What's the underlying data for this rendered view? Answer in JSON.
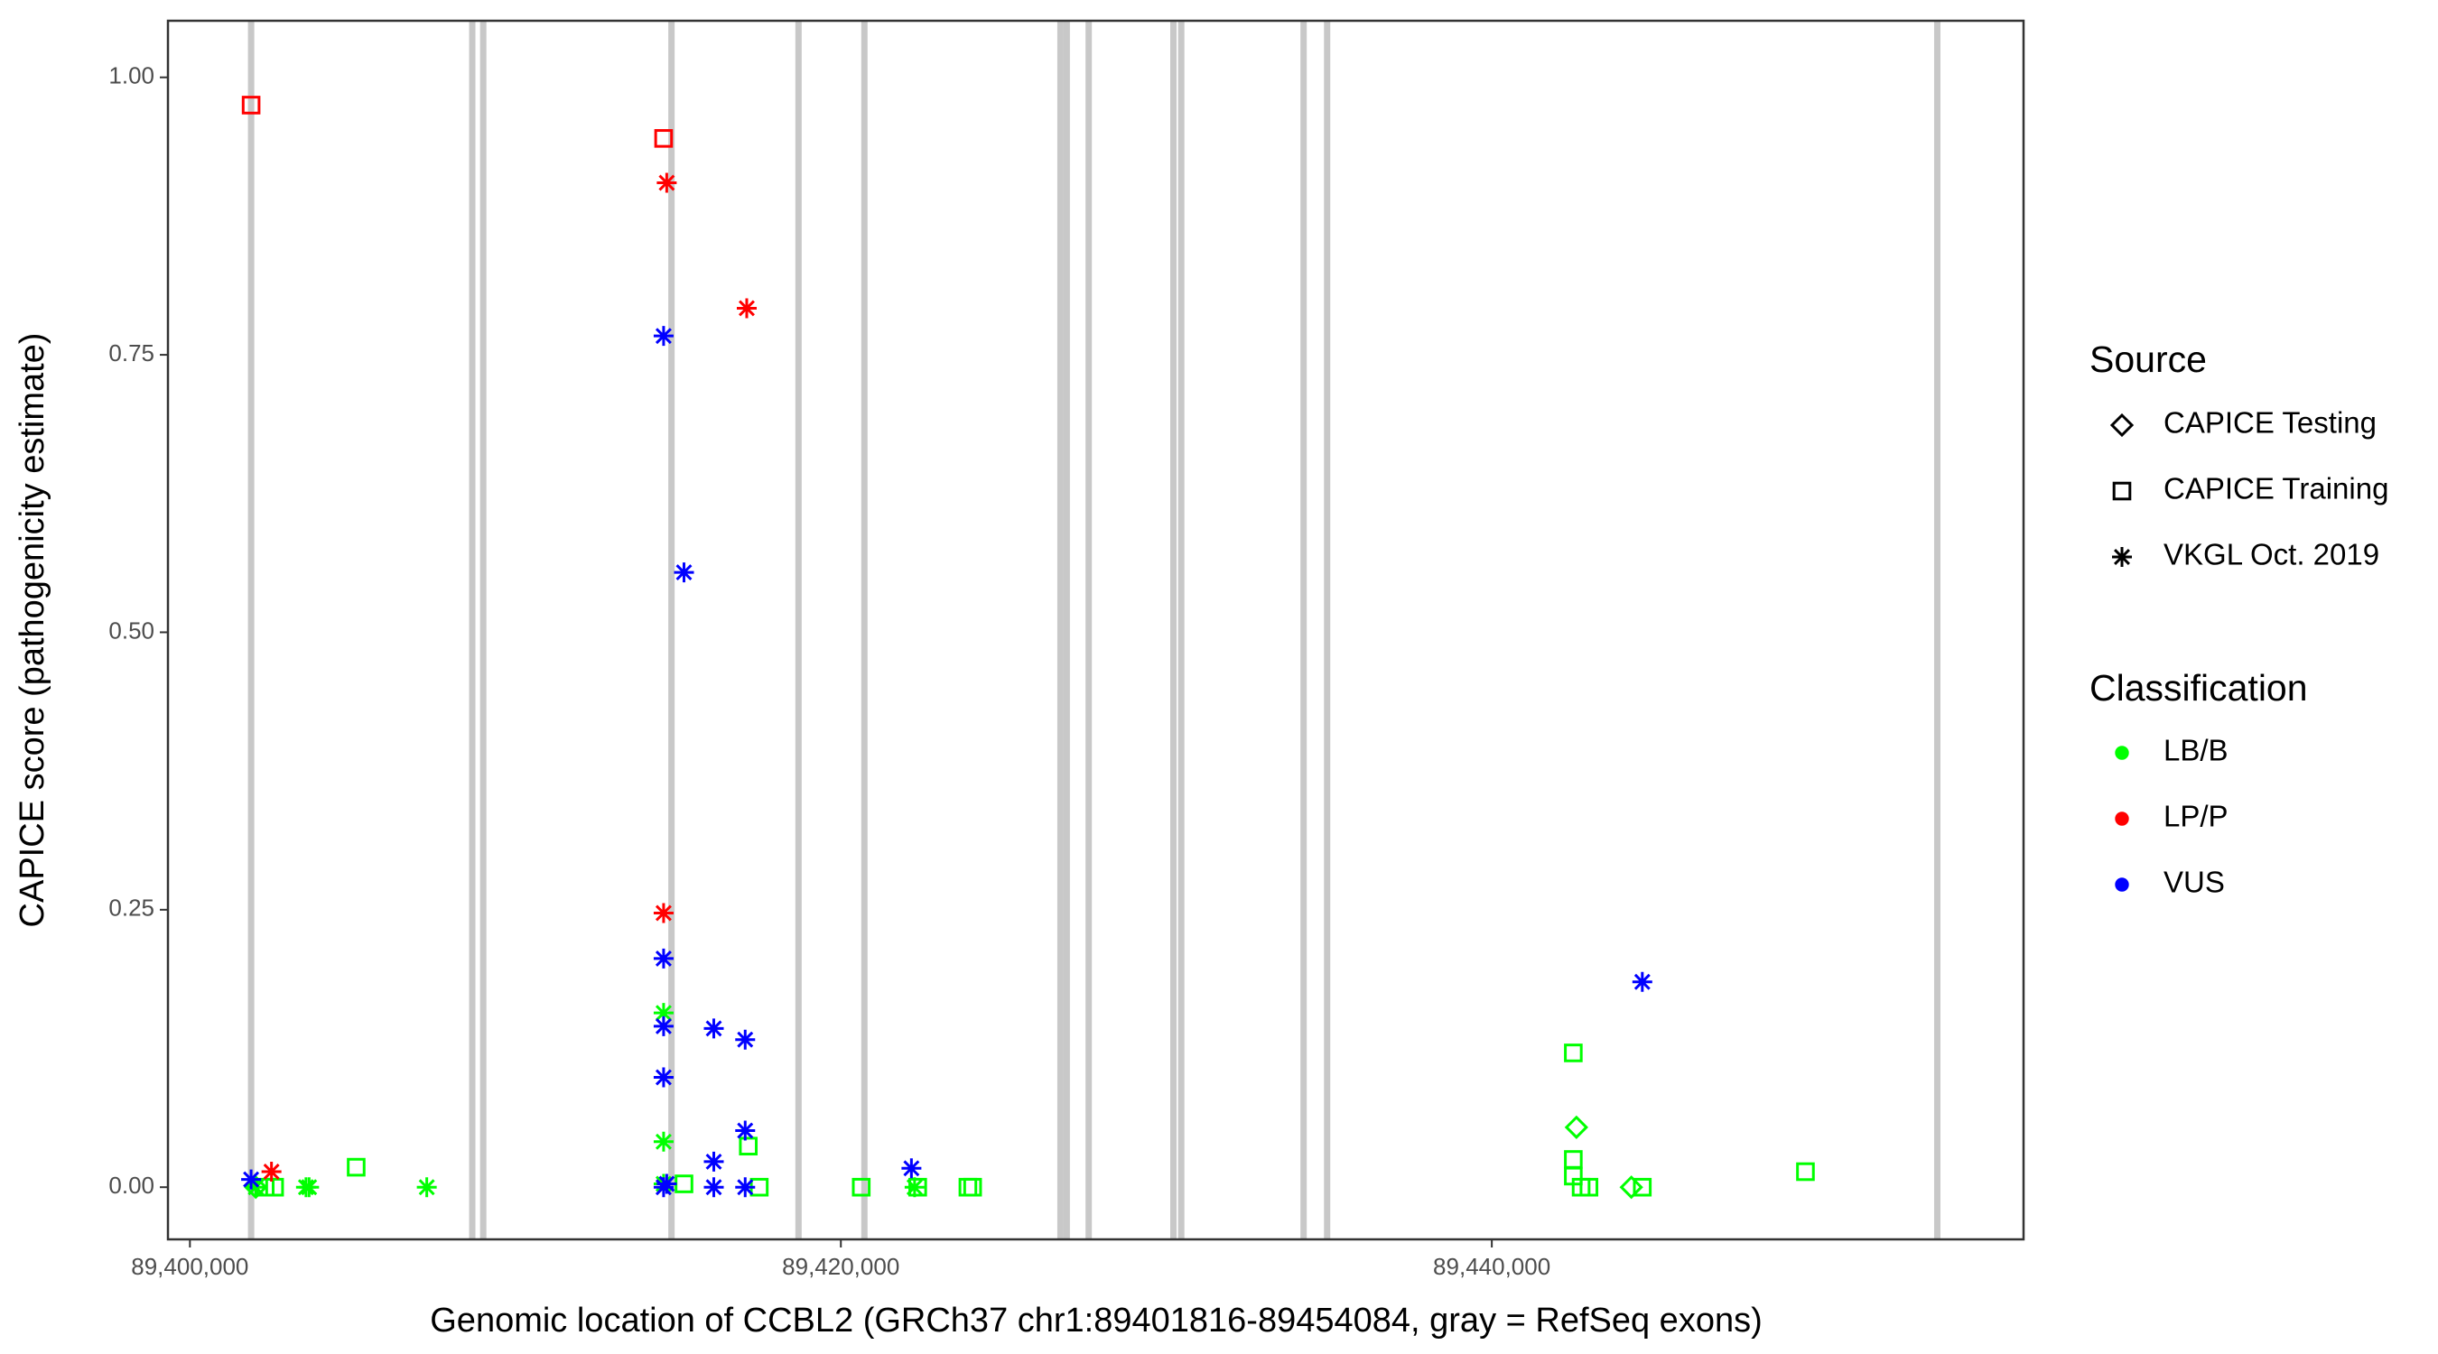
{
  "chart_data": {
    "type": "scatter",
    "xlabel": "Genomic location of CCBL2 (GRCh37 chr1:89401816-89454084, gray = RefSeq exons)",
    "ylabel": "CAPICE score (pathogenicity estimate)",
    "xlim": [
      89399325,
      89456337
    ],
    "ylim": [
      -0.047,
      1.051
    ],
    "xticks": [
      {
        "value": 89400000,
        "label": "89,400,000"
      },
      {
        "value": 89420000,
        "label": "89,420,000"
      },
      {
        "value": 89440000,
        "label": "89,440,000"
      }
    ],
    "yticks": [
      {
        "value": 0,
        "label": "0.00"
      },
      {
        "value": 0.25,
        "label": "0.25"
      },
      {
        "value": 0.5,
        "label": "0.50"
      },
      {
        "value": 0.75,
        "label": "0.75"
      },
      {
        "value": 1,
        "label": "1.00"
      }
    ],
    "exon_color": "#c8c8c8",
    "exons": [
      89401880,
      89408675,
      89409012,
      89414795,
      89418699,
      89420723,
      89426747,
      89426940,
      89427614,
      89430217,
      89430458,
      89434217,
      89434940,
      89453687
    ],
    "legends": [
      {
        "title": "Source",
        "entries": [
          "CAPICE Testing",
          "CAPICE Training",
          "VKGL Oct. 2019"
        ],
        "shapes": [
          "diamond",
          "square",
          "asterisk"
        ]
      },
      {
        "title": "Classification",
        "entries": [
          "LB/B",
          "LP/P",
          "VUS"
        ],
        "colors": [
          "#00ff00",
          "#ff0000",
          "#0000ff"
        ]
      }
    ],
    "groups": [
      {
        "shape": "square",
        "color": "#00ff00",
        "x": [
          89402313,
          89402602,
          89405108,
          89415180,
          89417156,
          89417493,
          89420626,
          89422361,
          89423903,
          89424048,
          89442504,
          89442504,
          89442504,
          89442744,
          89442985,
          89444624,
          89449636
        ],
        "y": [
          0,
          0,
          0.018,
          0.003,
          0.037,
          0,
          0,
          0,
          0,
          0,
          0.121,
          0.025,
          0.01,
          0,
          0,
          0,
          0.014
        ]
      },
      {
        "shape": "diamond",
        "color": "#00ff00",
        "x": [
          89402024,
          89442600,
          89444287
        ],
        "y": [
          0,
          0.054,
          0
        ]
      },
      {
        "shape": "asterisk",
        "color": "#00ff00",
        "x": [
          89414554,
          89414554,
          89407277,
          89403566,
          89403662,
          89414554,
          89422265,
          89402024
        ],
        "y": [
          0.157,
          0.041,
          0,
          0,
          0,
          0.003,
          0,
          0
        ]
      },
      {
        "shape": "asterisk",
        "color": "#0000ff",
        "x": [
          89414554,
          89415180,
          89414554,
          89414554,
          89416096,
          89417060,
          89414554,
          89417060,
          89416096,
          89422168,
          89444624,
          89401880,
          89414650,
          89416096,
          89417060,
          89414554
        ],
        "y": [
          0.767,
          0.554,
          0.206,
          0.145,
          0.143,
          0.133,
          0.099,
          0.051,
          0.023,
          0.017,
          0.185,
          0.007,
          0.003,
          0,
          0,
          0
        ]
      },
      {
        "shape": "square",
        "color": "#ff0000",
        "x": [
          89401880,
          89414554
        ],
        "y": [
          0.975,
          0.945
        ]
      },
      {
        "shape": "asterisk",
        "color": "#ff0000",
        "x": [
          89414650,
          89417108,
          89414554,
          89402506
        ],
        "y": [
          0.905,
          0.792,
          0.247,
          0.014
        ]
      }
    ]
  }
}
